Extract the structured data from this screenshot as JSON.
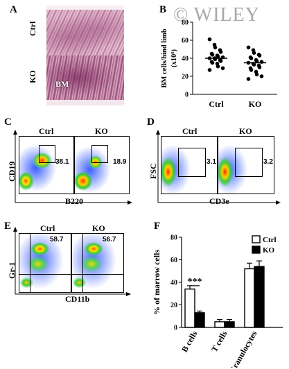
{
  "watermark": "© WILEY",
  "panels": {
    "A": {
      "letter": "A",
      "row_labels": [
        "Ctrl",
        "KO"
      ],
      "annotation": "BM"
    },
    "B": {
      "letter": "B",
      "ylabel": "BM cells/hind limb",
      "ylabel_unit": "(x10⁶)",
      "ticks": [
        "0",
        "20",
        "40",
        "60",
        "80"
      ],
      "groups": [
        "Ctrl",
        "KO"
      ]
    },
    "C": {
      "letter": "C",
      "headers": [
        "Ctrl",
        "KO"
      ],
      "ylabel": "CD19",
      "xlabel": "B220",
      "values": [
        "38.1",
        "18.9"
      ]
    },
    "D": {
      "letter": "D",
      "headers": [
        "Ctrl",
        "KO"
      ],
      "ylabel": "FSC",
      "xlabel": "CD3e",
      "values": [
        "3.1",
        "3.2"
      ]
    },
    "E": {
      "letter": "E",
      "headers": [
        "Ctrl",
        "KO"
      ],
      "ylabel": "Gr-1",
      "xlabel": "CD11b",
      "values": [
        "58.7",
        "56.7"
      ]
    },
    "F": {
      "letter": "F",
      "ylabel": "% of marrow cells",
      "ticks": [
        "0",
        "20",
        "40",
        "60",
        "80"
      ],
      "legend": [
        "Ctrl",
        "KO"
      ],
      "significance": "***"
    }
  },
  "chart_data": [
    {
      "type": "scatter",
      "categories": [
        "Ctrl",
        "KO"
      ],
      "ylabel": "BM cells/hind limb (x10⁶)",
      "ylim": [
        0,
        80
      ],
      "series": [
        {
          "name": "Ctrl",
          "values": [
            61,
            55,
            52,
            49,
            47,
            45,
            44,
            43,
            42,
            41,
            40,
            40,
            39,
            38,
            37,
            36,
            35,
            34,
            31,
            29,
            27
          ],
          "mean": 40
        },
        {
          "name": "KO",
          "values": [
            52,
            49,
            46,
            44,
            43,
            41,
            40,
            38,
            37,
            36,
            35,
            34,
            33,
            32,
            30,
            29,
            27,
            25,
            22,
            20,
            17
          ],
          "mean": 35
        }
      ]
    },
    {
      "type": "bar",
      "categories": [
        "B cells",
        "T cells",
        "Granulocytes"
      ],
      "ylabel": "% of marrow cells",
      "ylim": [
        0,
        80
      ],
      "series": [
        {
          "name": "Ctrl",
          "values": [
            34,
            5,
            52
          ],
          "errors": [
            3,
            2,
            5
          ]
        },
        {
          "name": "KO",
          "values": [
            13,
            5,
            54
          ],
          "errors": [
            1.5,
            2,
            5
          ]
        }
      ],
      "colors": {
        "Ctrl": "#ffffff",
        "KO": "#000000"
      }
    }
  ]
}
